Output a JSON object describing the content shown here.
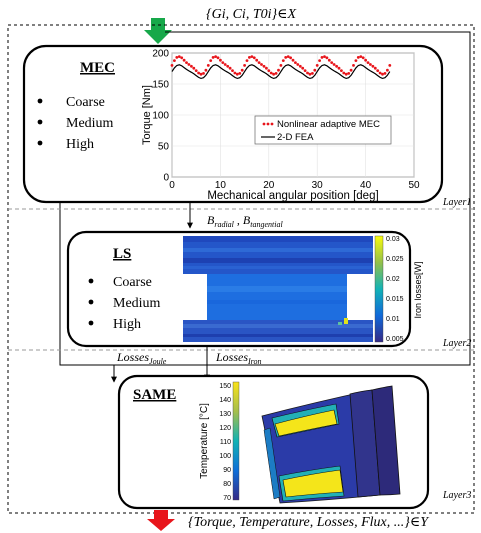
{
  "io": {
    "input_label": "{Gi, Ci, T0i}∈X",
    "output_label": "{Torque, Temperature, Losses, Flux, ...}∈Y"
  },
  "mec": {
    "title": "MEC",
    "bullets": [
      "Coarse",
      "Medium",
      "High"
    ]
  },
  "mec_chart": {
    "chart_data": {
      "type": "line",
      "xlabel": "Mechanical angular position [deg]",
      "ylabel": "Torque [Nm]",
      "xlim": [
        0,
        50
      ],
      "ylim": [
        0,
        200
      ],
      "xticks": [
        "0",
        "10",
        "20",
        "30",
        "40",
        "50"
      ],
      "yticks": [
        "0",
        "50",
        "100",
        "150",
        "200"
      ],
      "grid": true,
      "legend_position": "center-right",
      "series": [
        {
          "name": "Nonlinear adaptive MEC",
          "style": "dotted",
          "color": "#e8151b",
          "mean": 180,
          "amplitude": 13,
          "period_deg": 7.5,
          "x_range": [
            0,
            45
          ]
        },
        {
          "name": "2-D FEA",
          "style": "solid",
          "color": "#000000",
          "mean": 170,
          "amplitude": 10,
          "period_deg": 7.5,
          "x_range": [
            0,
            45
          ]
        }
      ]
    }
  },
  "layer_labels": {
    "layer1": "Layer1",
    "layer2": "Layer2",
    "layer3": "Layer3"
  },
  "links": {
    "b_fields": "Bradial , Btangential",
    "losses_joule": "LossesJoule",
    "losses_iron": "LossesIron"
  },
  "ls": {
    "title": "LS",
    "bullets": [
      "Coarse",
      "Medium",
      "High"
    ],
    "colorbar": {
      "label": "Iron losses[W]",
      "ticks": [
        "0.03",
        "0.025",
        "0.02",
        "0.015",
        "0.01",
        "0.005"
      ]
    }
  },
  "same": {
    "title": "SAME",
    "colorbar": {
      "label": "Temperature [°C]",
      "ticks": [
        "150",
        "140",
        "130",
        "120",
        "110",
        "100",
        "90",
        "80",
        "70"
      ]
    }
  },
  "colors": {
    "green_arrow": "#17a84a",
    "red_arrow": "#e8151b",
    "heat_blue": "#1f4fd1",
    "heat_yellow": "#f5e61b"
  }
}
